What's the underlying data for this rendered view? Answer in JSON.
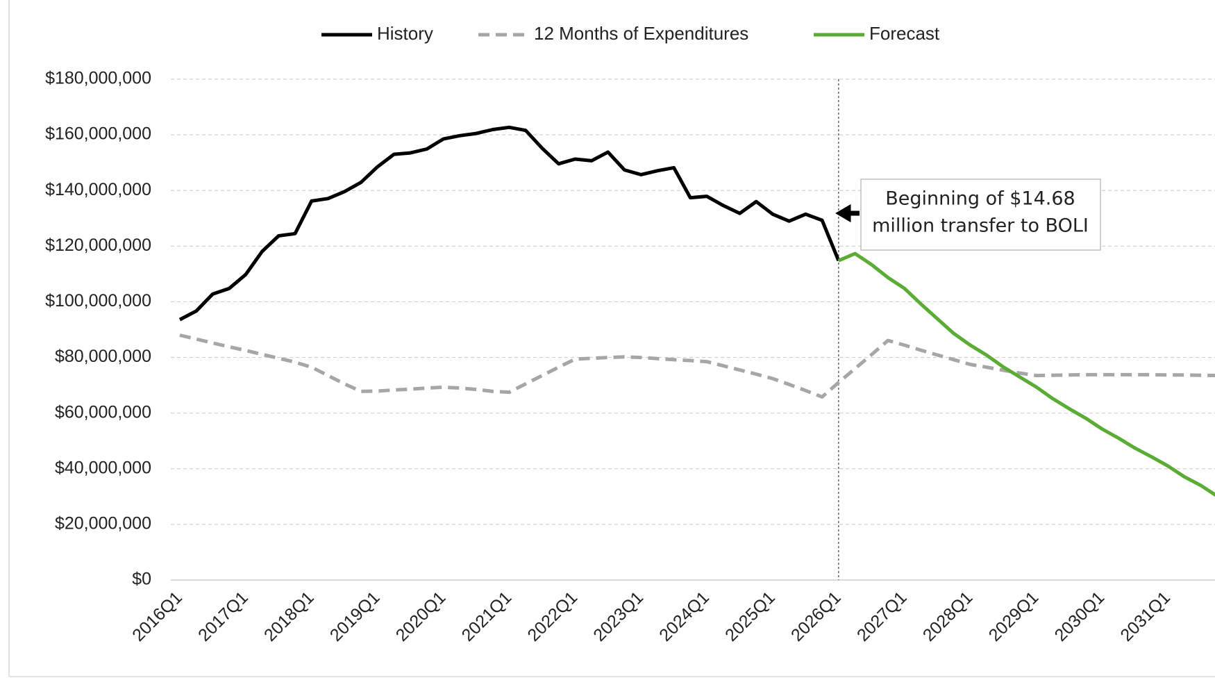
{
  "chart_data": {
    "type": "line",
    "categories": [
      "2016Q1",
      null,
      null,
      null,
      "2017Q1",
      null,
      null,
      null,
      "2018Q1",
      null,
      null,
      null,
      "2019Q1",
      null,
      null,
      null,
      "2020Q1",
      null,
      null,
      null,
      "2021Q1",
      null,
      null,
      null,
      "2022Q1",
      null,
      null,
      null,
      "2023Q1",
      null,
      null,
      null,
      "2024Q1",
      null,
      null,
      null,
      "2025Q1",
      null,
      null,
      null,
      "2026Q1",
      null,
      null,
      null,
      "2027Q1",
      null,
      null,
      null,
      "2028Q1",
      null,
      null,
      null,
      "2029Q1",
      null,
      null,
      null,
      "2030Q1",
      null,
      null,
      null,
      "2031Q1",
      null,
      null,
      null
    ],
    "series": [
      {
        "name": "History",
        "color": "#000000",
        "dash": false,
        "values": [
          93600000,
          96700000,
          102800000,
          104800000,
          109800000,
          118100000,
          123700000,
          124500000,
          136200000,
          137100000,
          139600000,
          142900000,
          148500000,
          153000000,
          153500000,
          154900000,
          158500000,
          159700000,
          160500000,
          161900000,
          162700000,
          161600000,
          155200000,
          149600000,
          151300000,
          150700000,
          153800000,
          147400000,
          145700000,
          147100000,
          148200000,
          137400000,
          137900000,
          134600000,
          131800000,
          136000000,
          131500000,
          129000000,
          131500000,
          129300000,
          114800000,
          null,
          null,
          null,
          null,
          null,
          null,
          null,
          null,
          null,
          null,
          null,
          null,
          null,
          null,
          null,
          null,
          null,
          null,
          null,
          null,
          null,
          null,
          null
        ]
      },
      {
        "name": "12 Months of Expenditures",
        "color": "#a6a6a6",
        "dash": true,
        "values": [
          88000000,
          86600000,
          85200000,
          83800000,
          82500000,
          81100000,
          79700000,
          78300000,
          76500000,
          73500000,
          70500000,
          67800000,
          67900000,
          68300000,
          68600000,
          69000000,
          69300000,
          69000000,
          68500000,
          67800000,
          67500000,
          70500000,
          73500000,
          76500000,
          79400000,
          79700000,
          80000000,
          80200000,
          80000000,
          79600000,
          79200000,
          78900000,
          78500000,
          77000000,
          75500000,
          74000000,
          72400000,
          70300000,
          68100000,
          65800000,
          71000000,
          76000000,
          81000000,
          86100000,
          84400000,
          82600000,
          80900000,
          79200000,
          77500000,
          76500000,
          75400000,
          74400000,
          73500000,
          73600000,
          73700000,
          73800000,
          73800000,
          73800000,
          73800000,
          73800000,
          73700000,
          73700000,
          73600000,
          73500000
        ]
      },
      {
        "name": "Forecast",
        "color": "#5aac35",
        "dash": false,
        "values": [
          null,
          null,
          null,
          null,
          null,
          null,
          null,
          null,
          null,
          null,
          null,
          null,
          null,
          null,
          null,
          null,
          null,
          null,
          null,
          null,
          null,
          null,
          null,
          null,
          null,
          null,
          null,
          null,
          null,
          null,
          null,
          null,
          null,
          null,
          null,
          null,
          null,
          null,
          null,
          null,
          114800000,
          117300000,
          113400000,
          108700000,
          104800000,
          99200000,
          93900000,
          88600000,
          84400000,
          80800000,
          76600000,
          73000000,
          69400000,
          65200000,
          61600000,
          58200000,
          54300000,
          51000000,
          47400000,
          44300000,
          41000000,
          37100000,
          34000000,
          30100000
        ]
      }
    ],
    "ylim": [
      0,
      180000000
    ],
    "yticks": [
      {
        "value": 0,
        "label": "$0"
      },
      {
        "value": 20000000,
        "label": "$20,000,000"
      },
      {
        "value": 40000000,
        "label": "$40,000,000"
      },
      {
        "value": 60000000,
        "label": "$60,000,000"
      },
      {
        "value": 80000000,
        "label": "$80,000,000"
      },
      {
        "value": 100000000,
        "label": "$100,000,000"
      },
      {
        "value": 120000000,
        "label": "$120,000,000"
      },
      {
        "value": 140000000,
        "label": "$140,000,000"
      },
      {
        "value": 160000000,
        "label": "$160,000,000"
      },
      {
        "value": 180000000,
        "label": "$180,000,000"
      }
    ],
    "grid": true,
    "legend": "top",
    "annotation": [
      "Beginning of $14.68",
      "million transfer to BOLI"
    ]
  }
}
